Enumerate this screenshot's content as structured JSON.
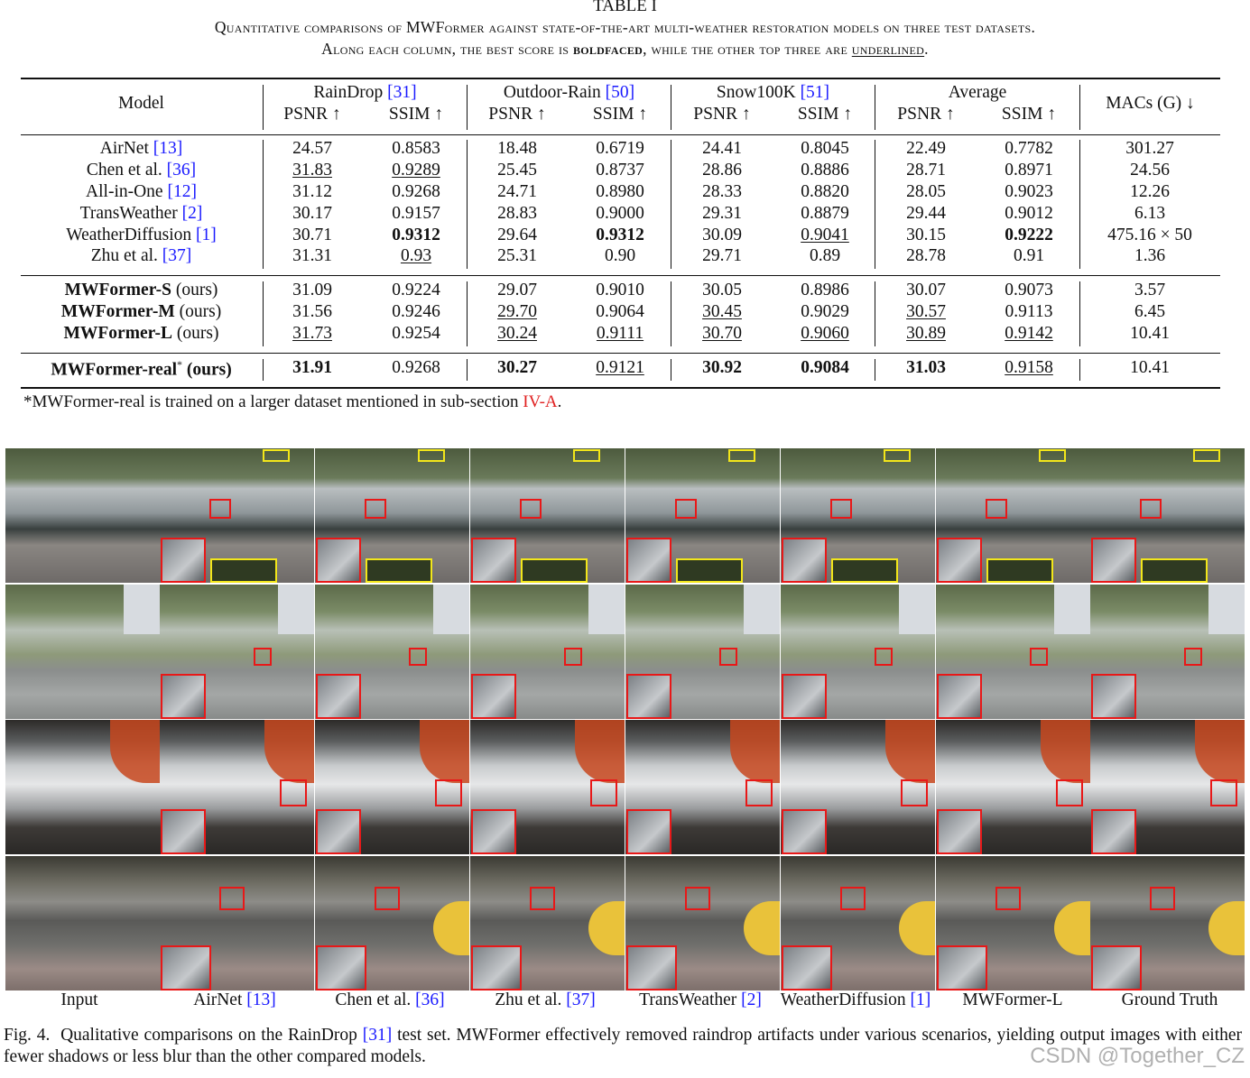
{
  "table": {
    "label": "TABLE I",
    "caption_line1": "Quantitative comparisons of MWFormer against state-of-the-art multi-weather restoration models on three test datasets.",
    "caption_line2_a": "Along each column, the best score is",
    "caption_line2_bold": "boldfaced",
    "caption_line2_b": ", while the other top three are",
    "caption_line2_ul": "underlined",
    "caption_line2_c": ".",
    "headers": {
      "model": "Model",
      "raindrop": "RainDrop",
      "raindrop_ref": "[31]",
      "outdoor": "Outdoor-Rain",
      "outdoor_ref": "[50]",
      "snow": "Snow100K",
      "snow_ref": "[51]",
      "average": "Average",
      "psnr": "PSNR ↑",
      "ssim": "SSIM ↑",
      "macs": "MACs (G) ↓"
    },
    "rows": [
      {
        "model": "AirNet",
        "ref": "[13]",
        "vals": [
          "24.57",
          "0.8583",
          "18.48",
          "0.6719",
          "24.41",
          "0.8045",
          "22.49",
          "0.7782",
          "301.27"
        ]
      },
      {
        "model": "Chen et al.",
        "ref": "[36]",
        "vals": [
          "31.83",
          "0.9289",
          "25.45",
          "0.8737",
          "28.86",
          "0.8886",
          "28.71",
          "0.8971",
          "24.56"
        ]
      },
      {
        "model": "All-in-One",
        "ref": "[12]",
        "vals": [
          "31.12",
          "0.9268",
          "24.71",
          "0.8980",
          "28.33",
          "0.8820",
          "28.05",
          "0.9023",
          "12.26"
        ]
      },
      {
        "model": "TransWeather",
        "ref": "[2]",
        "vals": [
          "30.17",
          "0.9157",
          "28.83",
          "0.9000",
          "29.31",
          "0.8879",
          "29.44",
          "0.9012",
          "6.13"
        ]
      },
      {
        "model": "WeatherDiffusion",
        "ref": "[1]",
        "vals": [
          "30.71",
          "0.9312",
          "29.64",
          "0.9312",
          "30.09",
          "0.9041",
          "30.15",
          "0.9222",
          "475.16 × 50"
        ]
      },
      {
        "model": "Zhu et al.",
        "ref": "[37]",
        "vals": [
          "31.31",
          "0.93",
          "25.31",
          "0.90",
          "29.71",
          "0.89",
          "28.78",
          "0.91",
          "1.36"
        ]
      },
      {
        "model": "MWFormer-S",
        "suffix": "(ours)",
        "vals": [
          "31.09",
          "0.9224",
          "29.07",
          "0.9010",
          "30.05",
          "0.8986",
          "30.07",
          "0.9073",
          "3.57"
        ]
      },
      {
        "model": "MWFormer-M",
        "suffix": "(ours)",
        "vals": [
          "31.56",
          "0.9246",
          "29.70",
          "0.9064",
          "30.45",
          "0.9029",
          "30.57",
          "0.9113",
          "6.45"
        ]
      },
      {
        "model": "MWFormer-L",
        "suffix": "(ours)",
        "vals": [
          "31.73",
          "0.9254",
          "30.24",
          "0.9111",
          "30.70",
          "0.9060",
          "30.89",
          "0.9142",
          "10.41"
        ]
      },
      {
        "model": "MWFormer-real",
        "sup": "*",
        "suffix": "(ours)",
        "vals": [
          "31.91",
          "0.9268",
          "30.27",
          "0.9121",
          "30.92",
          "0.9084",
          "31.03",
          "0.9158",
          "10.41"
        ]
      }
    ],
    "footnote_a": "*MWFormer-real is trained on a larger dataset mentioned in sub-section",
    "footnote_ref": "IV-A",
    "footnote_b": "."
  },
  "figure": {
    "columns": [
      {
        "label": "Input",
        "ref": ""
      },
      {
        "label": "AirNet",
        "ref": "[13]"
      },
      {
        "label": "Chen et al.",
        "ref": "[36]"
      },
      {
        "label": "Zhu et al.",
        "ref": "[37]"
      },
      {
        "label": "TransWeather",
        "ref": "[2]"
      },
      {
        "label": "WeatherDiffusion",
        "ref": "[1]"
      },
      {
        "label": "MWFormer-L",
        "ref": ""
      },
      {
        "label": "Ground Truth",
        "ref": ""
      }
    ],
    "caption_prefix": "Fig. 4.",
    "caption_a": "Qualitative comparisons on the RainDrop",
    "caption_ref": "[31]",
    "caption_b": "test set. MWFormer effectively removed raindrop artifacts under various scenarios, yielding output images with either fewer shadows or less blur than the other compared models."
  },
  "watermark": "CSDN @Together_CZ",
  "colors": {
    "ref": "#1a1aff",
    "red_ref": "#e02020",
    "box_red": "#e81818",
    "box_yellow": "#f2e61a"
  }
}
